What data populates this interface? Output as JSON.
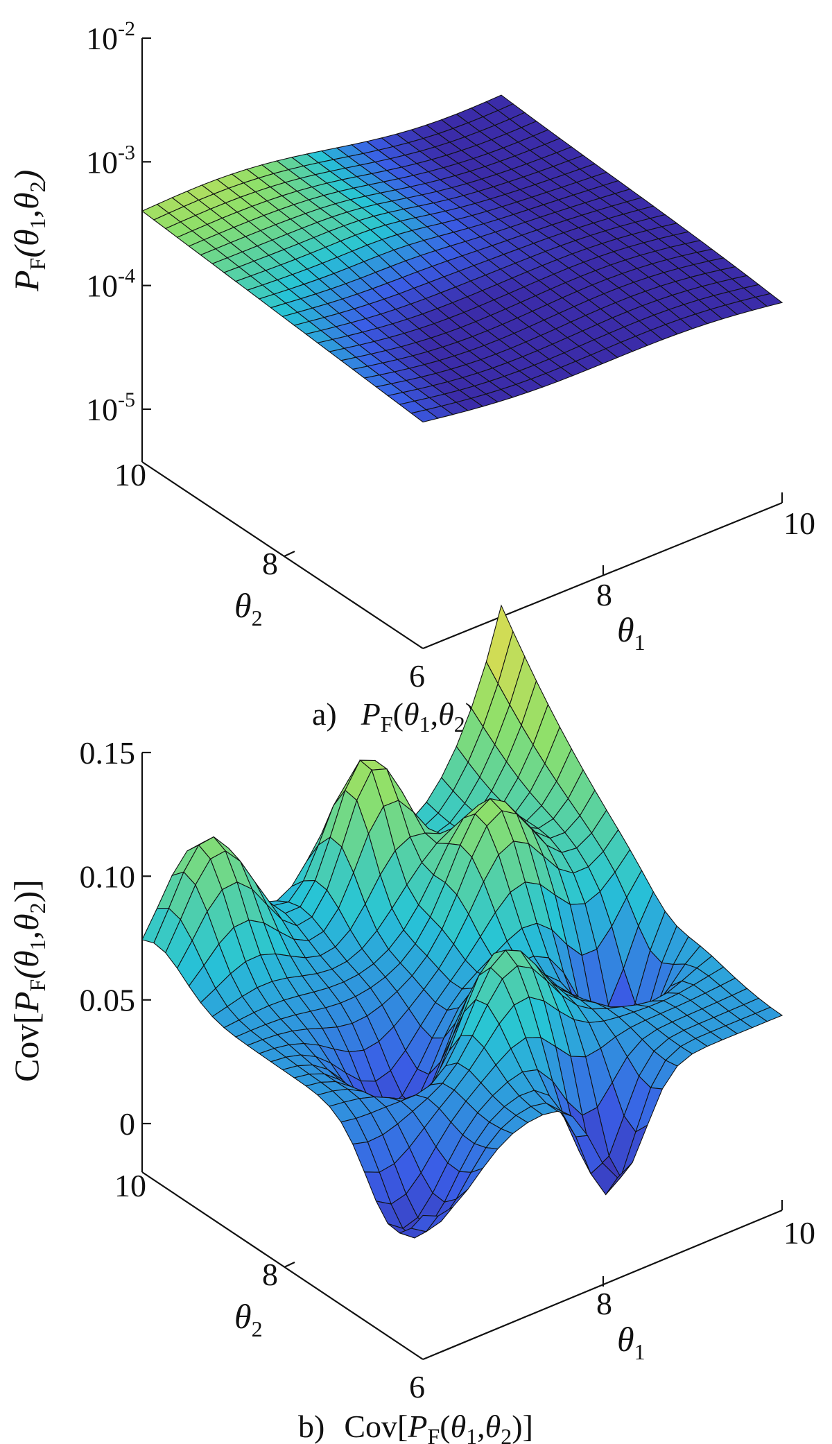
{
  "chart_data": [
    {
      "type": "surface",
      "panel_label": "a)",
      "caption": "P_F(θ1,θ2)",
      "zlabel": "P_F(θ1,θ2)",
      "xlabel": "θ1",
      "ylabel": "θ2",
      "z_scale": "log",
      "zlim": [
        1e-05,
        0.01
      ],
      "z_ticks": [
        "10^-2",
        "10^-3",
        "10^-4",
        "10^-5"
      ],
      "x_ticks": [
        "8",
        "10"
      ],
      "y_ticks": [
        "10",
        "8",
        "6"
      ],
      "xlim": [
        6,
        10
      ],
      "ylim": [
        6,
        10
      ],
      "colormap": [
        "#3b1f9a",
        "#3a5ee6",
        "#27c4d6",
        "#8ee06a",
        "#f5d94a"
      ],
      "surface_z_approx": "4e-4 at (θ1=6,θ2=10) decreasing to ~1.5e-4 at (θ1=10,θ2=6)"
    },
    {
      "type": "surface",
      "panel_label": "b)",
      "caption": "Cov[P_F(θ1,θ2)]",
      "zlabel": "Cov[P_F(θ1,θ2)]",
      "xlabel": "θ1",
      "ylabel": "θ2",
      "zlim": [
        0,
        0.15
      ],
      "z_ticks": [
        "0.15",
        "0.10",
        "0.05",
        "0"
      ],
      "x_ticks": [
        "8",
        "10"
      ],
      "y_ticks": [
        "10",
        "8",
        "6"
      ],
      "xlim": [
        6,
        10
      ],
      "ylim": [
        6,
        10
      ],
      "colormap": [
        "#3b1f9a",
        "#3a5ee6",
        "#27c4d6",
        "#8ee06a",
        "#f5d94a"
      ],
      "surface_z_range_approx": [
        0.0,
        0.15
      ]
    }
  ]
}
